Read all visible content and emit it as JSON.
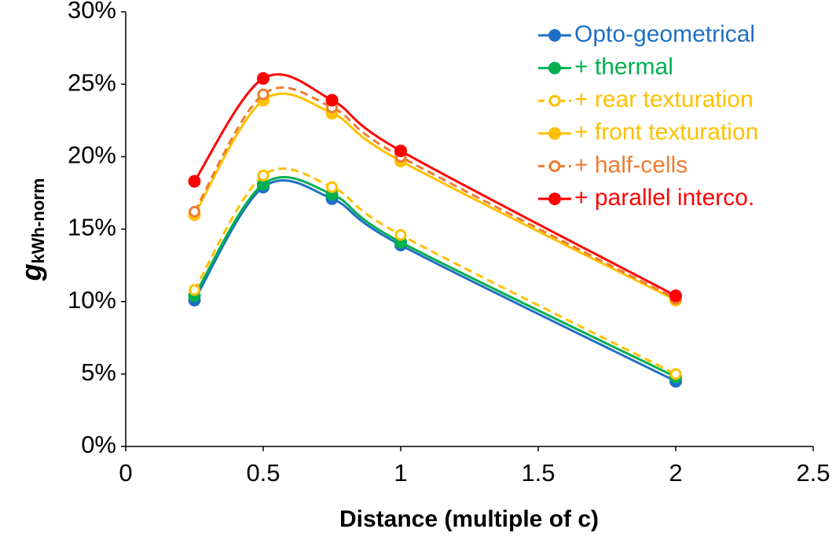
{
  "chart_data": {
    "type": "line",
    "x_label": "Distance (multiple of c)",
    "y_label": "g",
    "y_label_subscript": "kWh-norm",
    "x": [
      0.25,
      0.5,
      0.75,
      1,
      2
    ],
    "xlim": [
      0,
      2.5
    ],
    "xticks": [
      0,
      0.5,
      1,
      1.5,
      2,
      2.5
    ],
    "ylim": [
      0,
      30
    ],
    "yticks": [
      {
        "value": 0,
        "label": "0%"
      },
      {
        "value": 5,
        "label": "5%"
      },
      {
        "value": 10,
        "label": "10%"
      },
      {
        "value": 15,
        "label": "15%"
      },
      {
        "value": 20,
        "label": "20%"
      },
      {
        "value": 25,
        "label": "25%"
      },
      {
        "value": 30,
        "label": "30%"
      }
    ],
    "grid": false,
    "smooth": true,
    "legend": "top-right",
    "series": [
      {
        "name": "Opto-geometrical",
        "color": "#1f6fc5",
        "marker": "filled",
        "dashed": false,
        "values": [
          10.1,
          17.9,
          17.1,
          13.9,
          4.5
        ]
      },
      {
        "name": "+ thermal",
        "color": "#00b050",
        "marker": "filled",
        "dashed": false,
        "values": [
          10.4,
          18.1,
          17.4,
          14.1,
          4.8
        ]
      },
      {
        "name": "+ rear texturation",
        "color": "#ffc000",
        "marker": "open",
        "dashed": true,
        "values": [
          10.8,
          18.7,
          17.9,
          14.6,
          5.0
        ]
      },
      {
        "name": "+ front texturation",
        "color": "#ffc000",
        "marker": "filled",
        "dashed": false,
        "values": [
          16.0,
          23.9,
          23.0,
          19.7,
          10.1
        ]
      },
      {
        "name": "+ half-cells",
        "color": "#ed7d31",
        "marker": "open",
        "dashed": true,
        "values": [
          16.2,
          24.3,
          23.4,
          20.0,
          10.2
        ]
      },
      {
        "name": "+ parallel interco.",
        "color": "#ff0000",
        "marker": "filled",
        "dashed": false,
        "values": [
          18.3,
          25.4,
          23.9,
          20.4,
          10.4
        ]
      }
    ]
  }
}
